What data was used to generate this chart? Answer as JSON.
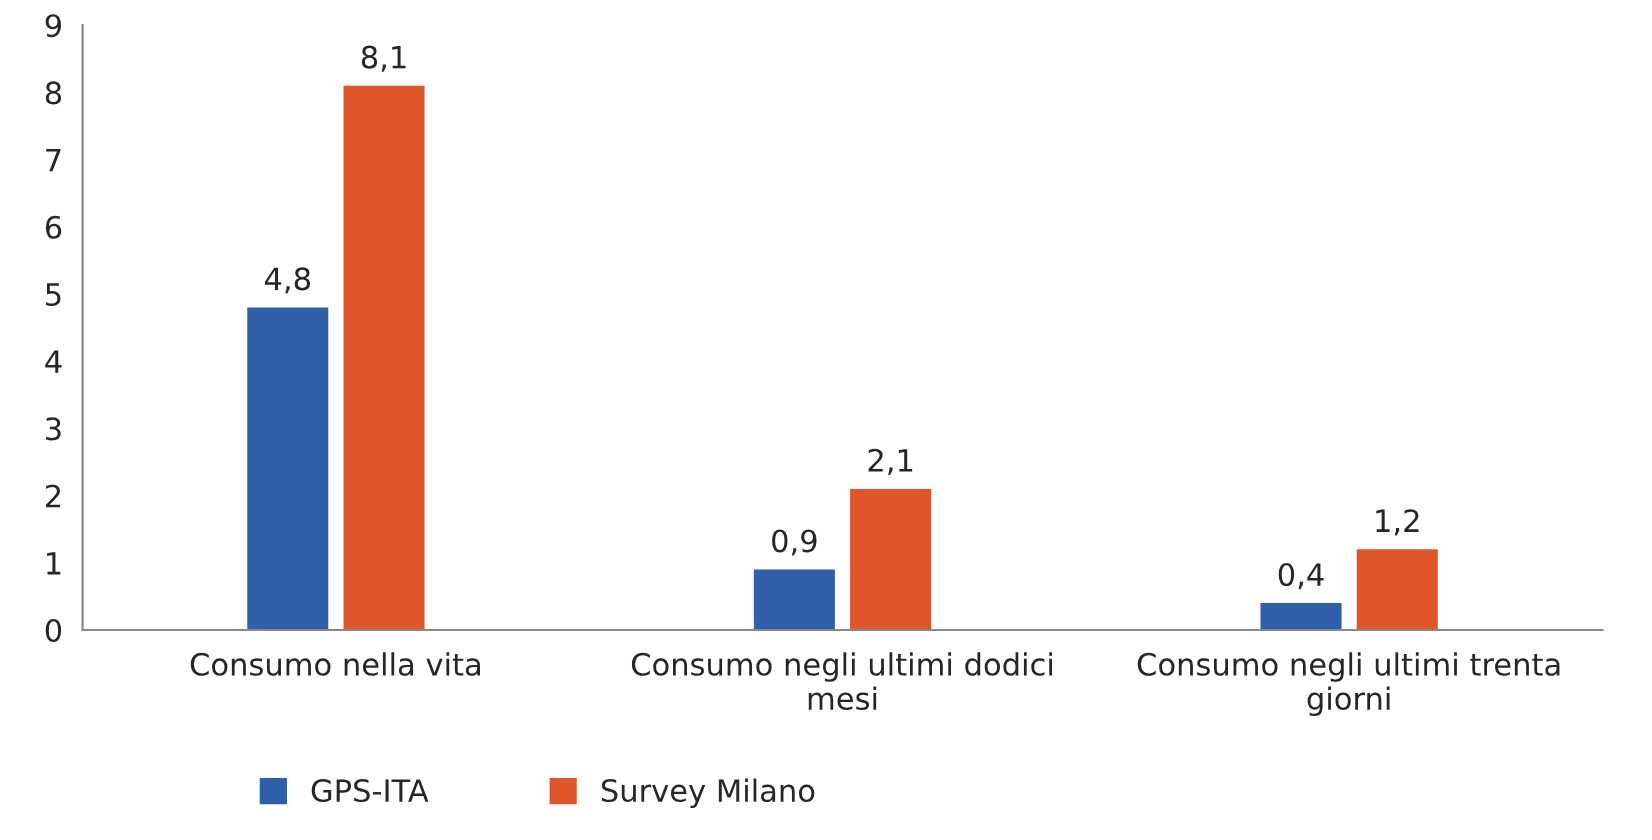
{
  "chart_data": {
    "type": "bar",
    "categories": [
      "Consumo nella vita",
      "Consumo negli ultimi dodici\nmesi",
      "Consumo negli ultimi trenta\ngiorni"
    ],
    "series": [
      {
        "name": "GPS-ITA",
        "color": "#2f5fa8",
        "values": [
          4.8,
          0.9,
          0.4
        ],
        "value_labels": [
          "4,8",
          "0,9",
          "0,4"
        ]
      },
      {
        "name": "Survey Milano",
        "color": "#e0562b",
        "values": [
          8.1,
          2.1,
          1.2
        ],
        "value_labels": [
          "8,1",
          "2,1",
          "1,2"
        ]
      }
    ],
    "ylim": [
      0,
      9
    ],
    "yticks": [
      0,
      1,
      2,
      3,
      4,
      5,
      6,
      7,
      8,
      9
    ],
    "grid": false,
    "legend": "bottom"
  }
}
